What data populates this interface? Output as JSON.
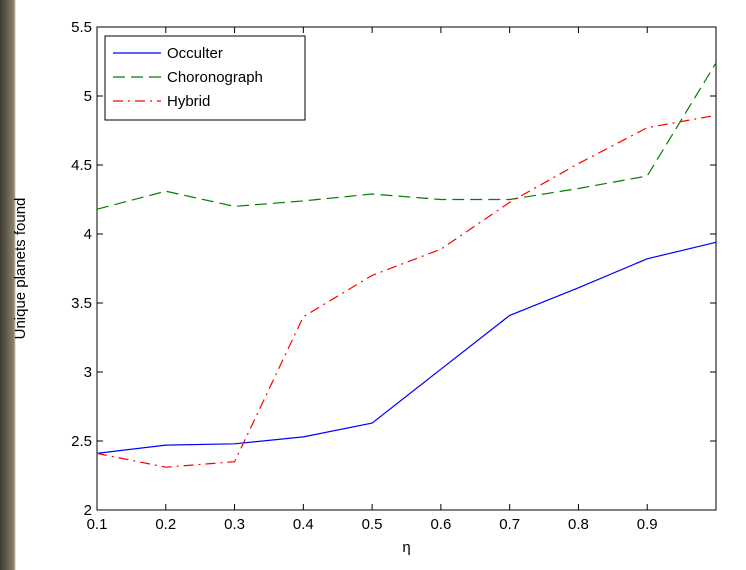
{
  "chart_data": {
    "type": "line",
    "title": "",
    "xlabel": "η",
    "ylabel": "Unique planets found",
    "xlim": [
      0.1,
      1.0
    ],
    "ylim": [
      2,
      5.5
    ],
    "xticks": [
      "0.1",
      "0.2",
      "0.3",
      "0.4",
      "0.5",
      "0.6",
      "0.7",
      "0.8",
      "0.9"
    ],
    "yticks": [
      "2",
      "2.5",
      "3",
      "3.5",
      "4",
      "4.5",
      "5",
      "5.5"
    ],
    "legend_position": "top-left",
    "grid": false,
    "x": [
      0.1,
      0.2,
      0.3,
      0.4,
      0.5,
      0.6,
      0.7,
      0.8,
      0.9,
      1.0
    ],
    "series": [
      {
        "name": "Occulter",
        "color": "#0000ff",
        "style": "solid",
        "values": [
          2.41,
          2.47,
          2.48,
          2.53,
          2.63,
          3.02,
          3.41,
          3.61,
          3.82,
          3.94
        ]
      },
      {
        "name": "Choronograph",
        "color": "#008000",
        "style": "dashed",
        "values": [
          4.18,
          4.31,
          4.2,
          4.24,
          4.29,
          4.25,
          4.25,
          4.33,
          4.42,
          5.24
        ]
      },
      {
        "name": "Hybrid",
        "color": "#ff0000",
        "style": "dashdot",
        "values": [
          2.41,
          2.31,
          2.35,
          3.4,
          3.7,
          3.89,
          4.23,
          4.51,
          4.77,
          4.86
        ]
      }
    ]
  }
}
